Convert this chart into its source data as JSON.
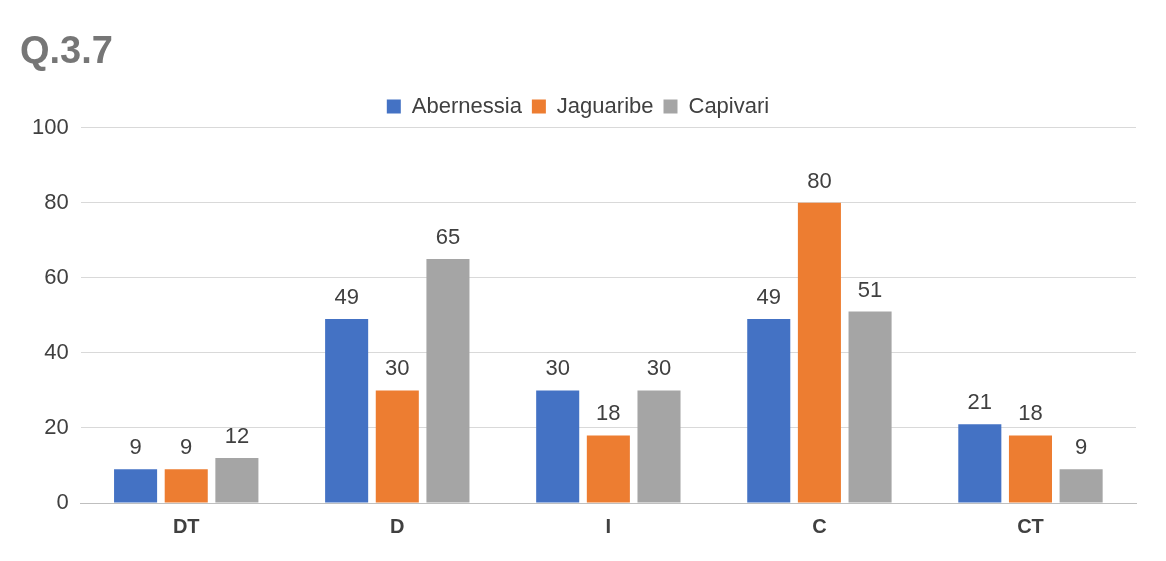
{
  "chart_data": {
    "type": "bar",
    "title": "Q.3.7",
    "categories": [
      "DT",
      "D",
      "I",
      "C",
      "CT"
    ],
    "series": [
      {
        "name": "Abernessia",
        "color": "#4472c4",
        "values": [
          9,
          49,
          30,
          49,
          21
        ]
      },
      {
        "name": "Jaguaribe",
        "color": "#ed7d31",
        "values": [
          9,
          30,
          18,
          80,
          18
        ]
      },
      {
        "name": "Capivari",
        "color": "#a5a5a5",
        "values": [
          12,
          65,
          30,
          51,
          9
        ]
      }
    ],
    "ylim": [
      0,
      100
    ],
    "yticks": [
      0,
      20,
      40,
      60,
      80,
      100
    ],
    "grid": "y",
    "legend": "top",
    "data_labels": true
  }
}
